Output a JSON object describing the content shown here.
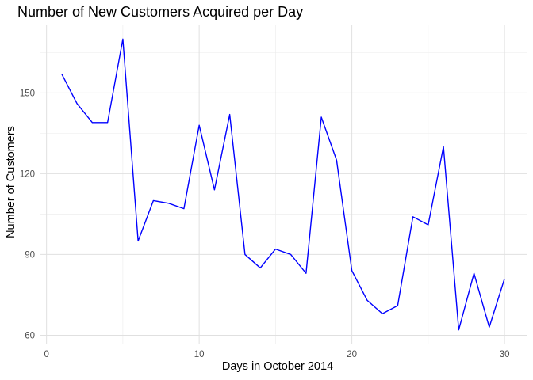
{
  "chart_data": {
    "type": "line",
    "title": "Number of New Customers Acquired per Day",
    "xlabel": "Days in October 2014",
    "ylabel": "Number of Customers",
    "xlim": [
      -0.45,
      31.45
    ],
    "ylim": [
      56.6,
      175.4
    ],
    "x_ticks": [
      0,
      10,
      20,
      30
    ],
    "y_ticks": [
      60,
      90,
      120,
      150
    ],
    "grid": true,
    "legend": "none",
    "line_color": "#0000FF",
    "series": [
      {
        "x": [
          1,
          2,
          3,
          4,
          5,
          6,
          7,
          8,
          9,
          10,
          11,
          12,
          13,
          14,
          15,
          16,
          17,
          18,
          19,
          20,
          21,
          22,
          23,
          24,
          25,
          26,
          27,
          28,
          29,
          30
        ],
        "values": [
          157,
          146,
          139,
          139,
          170,
          95,
          110,
          109,
          107,
          138,
          114,
          142,
          90,
          85,
          92,
          90,
          83,
          141,
          125,
          84,
          73,
          68,
          71,
          104,
          101,
          130,
          62,
          83,
          63,
          81
        ]
      }
    ]
  }
}
